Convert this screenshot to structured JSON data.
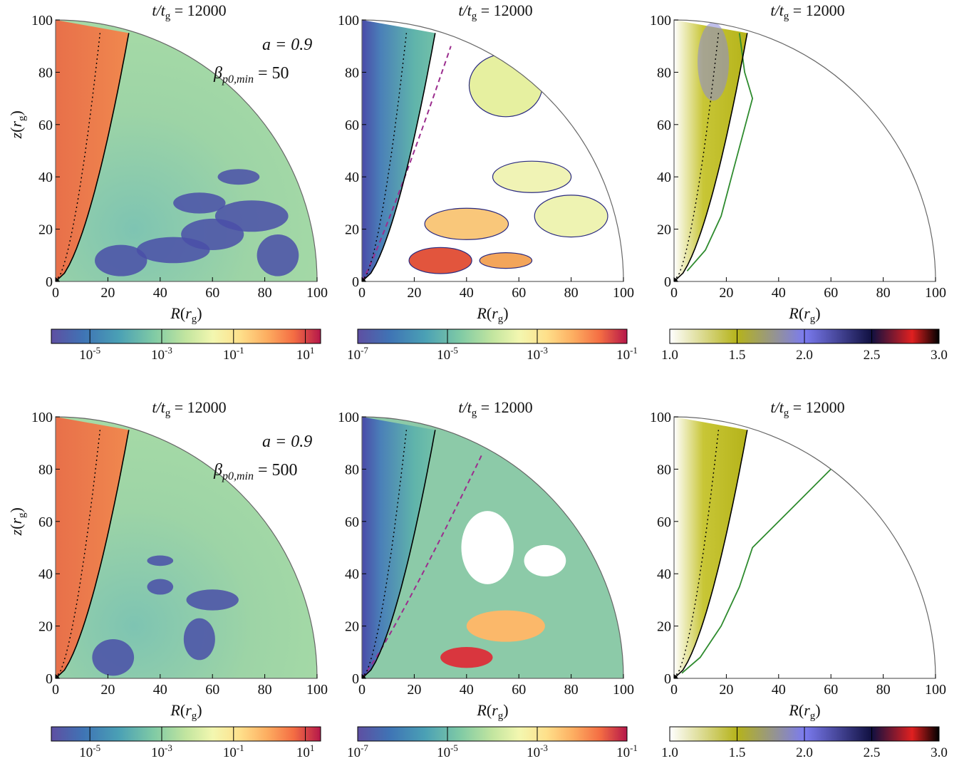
{
  "figure": {
    "rows": [
      {
        "annotation": {
          "line1": "a = 0.9",
          "line2_lhs": "β",
          "line2_sub": "p0,min",
          "line2_rhs": " = 50"
        },
        "panels": [
          {
            "title": "t/t",
            "title_sub": "g",
            "title_rhs": " = 12000",
            "colorbar": 0
          },
          {
            "title": "t/t",
            "title_sub": "g",
            "title_rhs": " = 12000",
            "colorbar": 1
          },
          {
            "title": "t/t",
            "title_sub": "g",
            "title_rhs": " = 12000",
            "colorbar": 2
          }
        ]
      },
      {
        "annotation": {
          "line1": "a = 0.9",
          "line2_lhs": "β",
          "line2_sub": "p0,min",
          "line2_rhs": " = 500"
        },
        "panels": [
          {
            "title": "t/t",
            "title_sub": "g",
            "title_rhs": " = 12000",
            "colorbar": 0
          },
          {
            "title": "t/t",
            "title_sub": "g",
            "title_rhs": " = 12000",
            "colorbar": 1
          },
          {
            "title": "t/t",
            "title_sub": "g",
            "title_rhs": " = 12000",
            "colorbar": 2
          }
        ]
      }
    ],
    "axes": {
      "xlabel": "R",
      "xlabel_arg": "r",
      "xlabel_sub": "g",
      "ylabel": "z",
      "ylabel_arg": "r",
      "ylabel_sub": "g",
      "xlim": [
        0,
        100
      ],
      "ylim": [
        0,
        100
      ],
      "xticks": [
        "0",
        "20",
        "40",
        "60",
        "80",
        "100"
      ],
      "yticks": [
        "0",
        "20",
        "40",
        "60",
        "80",
        "100"
      ]
    },
    "colorbars": [
      {
        "scale": "log",
        "ticks": [
          {
            "base": "10",
            "exp": "-5"
          },
          {
            "base": "10",
            "exp": "-3"
          },
          {
            "base": "10",
            "exp": "-1"
          },
          {
            "base": "10",
            "exp": "1"
          }
        ],
        "colormap": "spectral"
      },
      {
        "scale": "log",
        "ticks": [
          {
            "base": "10",
            "exp": "-7"
          },
          {
            "base": "10",
            "exp": "-5"
          },
          {
            "base": "10",
            "exp": "-3"
          },
          {
            "base": "10",
            "exp": "-1"
          }
        ],
        "colormap": "spectral"
      },
      {
        "scale": "linear",
        "ticks": [
          {
            "base": "1.0",
            "exp": ""
          },
          {
            "base": "1.5",
            "exp": ""
          },
          {
            "base": "2.0",
            "exp": ""
          },
          {
            "base": "2.5",
            "exp": ""
          },
          {
            "base": "3.0",
            "exp": ""
          }
        ],
        "colormap": "white-olive-blue-black-red"
      }
    ],
    "colors": {
      "jet": "#e8704a",
      "disk_blue": "#4a4fa8",
      "wind_green": "#8cc9a4",
      "olive": "#b8b81e",
      "contour_green": "#2e8b2e",
      "contour_purple": "#9b2d8e"
    }
  },
  "chart_data": {
    "type": "heatmap",
    "description_note": "Six quarter-disk panels (2 rows x 3 columns) on R-z plane in gravitational radii",
    "xlabel": "R(r_g)",
    "ylabel": "z(r_g)",
    "xlim": [
      0,
      100
    ],
    "ylim": [
      0,
      100
    ],
    "xticks": [
      0,
      20,
      40,
      60,
      80,
      100
    ],
    "yticks": [
      0,
      20,
      40,
      60,
      80,
      100
    ],
    "time": 12000,
    "spin": 0.9,
    "beta_p0_min": [
      50,
      500
    ],
    "colorbar_ranges": [
      {
        "min_exp": -6,
        "max_exp": 1.5,
        "ticks": [
          "1e-5",
          "1e-3",
          "1e-1",
          "1e1"
        ]
      },
      {
        "min_exp": -7,
        "max_exp": -1,
        "ticks": [
          "1e-7",
          "1e-5",
          "1e-3",
          "1e-1"
        ]
      },
      {
        "min": 1.0,
        "max": 3.0,
        "ticks": [
          1.0,
          1.5,
          2.0,
          2.5,
          3.0
        ]
      }
    ]
  }
}
